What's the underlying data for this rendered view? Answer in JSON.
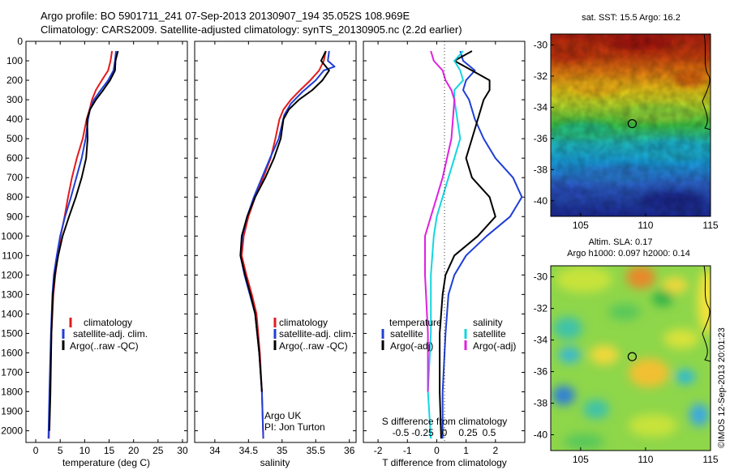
{
  "header": {
    "line1": "Argo profile: BO 5901711_241 07-Sep-2013 20130907_194 35.052S 108.969E",
    "line2": "Climatology: CARS2009. Satellite-adjusted climatology: synTS_20130905.nc (2.2d earlier)"
  },
  "footer": {
    "stamp": "©IMOS 12-Sep-2013 20:01:23"
  },
  "chart_data": [
    {
      "type": "line",
      "id": "temperature",
      "xlabel": "temperature (deg C)",
      "xlim": [
        -2,
        31
      ],
      "ylim": [
        2060,
        0
      ],
      "xticks": [
        "0",
        "5",
        "10",
        "15",
        "20",
        "25",
        "30"
      ],
      "xtick_values": [
        0,
        5,
        10,
        15,
        20,
        25,
        30
      ],
      "yticks": [
        "0",
        "100",
        "200",
        "300",
        "400",
        "500",
        "600",
        "700",
        "800",
        "900",
        "1000",
        "1100",
        "1200",
        "1300",
        "1400",
        "1500",
        "1600",
        "1700",
        "1800",
        "1900",
        "2000"
      ],
      "ytick_values": [
        0,
        100,
        200,
        300,
        400,
        500,
        600,
        700,
        800,
        900,
        1000,
        1100,
        1200,
        1300,
        1400,
        1500,
        1600,
        1700,
        1800,
        1900,
        2000
      ],
      "legend": [
        "climatology",
        "satellite-adj. clim.",
        "Argo(..raw -QC)"
      ],
      "series": [
        {
          "name": "climatology",
          "color": "#e41a1c",
          "x": [
            15.6,
            15.3,
            14.8,
            13.5,
            12.3,
            11.5,
            11.0,
            10.4,
            9.6,
            8.4,
            7.4,
            6.6,
            5.9,
            5.1,
            4.5,
            4.0,
            3.6,
            3.4,
            3.2,
            3.0,
            2.8,
            2.7
          ],
          "y": [
            50,
            100,
            150,
            200,
            250,
            300,
            350,
            400,
            500,
            600,
            700,
            800,
            900,
            1000,
            1100,
            1200,
            1300,
            1400,
            1500,
            1700,
            1900,
            2040
          ]
        },
        {
          "name": "satellite-adj. clim.",
          "color": "#1f3fd6",
          "x": [
            16.4,
            16.2,
            15.9,
            14.8,
            13.3,
            11.9,
            11.1,
            10.7,
            10.2,
            9.4,
            8.3,
            7.2,
            6.0,
            5.0,
            4.3,
            3.7,
            3.4,
            3.1,
            2.8,
            2.6
          ],
          "y": [
            50,
            100,
            150,
            200,
            250,
            300,
            350,
            400,
            500,
            600,
            700,
            800,
            900,
            1000,
            1100,
            1200,
            1300,
            1500,
            1800,
            2040
          ]
        },
        {
          "name": "Argo(..raw -QC)",
          "color": "#000000",
          "x": [
            16.8,
            16.3,
            16.2,
            15.2,
            13.8,
            12.3,
            11.1,
            10.5,
            10.6,
            10.3,
            9.4,
            8.2,
            6.8,
            5.5,
            4.6,
            3.9,
            3.5,
            3.2,
            3.0,
            2.8
          ],
          "y": [
            50,
            100,
            150,
            200,
            250,
            300,
            350,
            400,
            500,
            600,
            700,
            800,
            900,
            1000,
            1100,
            1200,
            1300,
            1500,
            1800,
            2000
          ]
        }
      ]
    },
    {
      "type": "line",
      "id": "salinity",
      "xlabel": "salinity",
      "xlim": [
        33.7,
        36.1
      ],
      "ylim": [
        2060,
        0
      ],
      "xticks": [
        "34",
        "34.5",
        "35",
        "35.5",
        "36"
      ],
      "xtick_values": [
        34,
        34.5,
        35,
        35.5,
        36
      ],
      "legend": [
        "climatology",
        "satellite-adj. clim.",
        "Argo(..raw -QC)"
      ],
      "annotation": [
        "Argo UK",
        "PI: Jon Turton"
      ],
      "series": [
        {
          "name": "climatology",
          "color": "#e41a1c",
          "x": [
            35.65,
            35.62,
            35.55,
            35.42,
            35.27,
            35.13,
            35.02,
            34.96,
            34.9,
            34.83,
            34.72,
            34.6,
            34.5,
            34.43,
            34.4,
            34.47,
            34.55,
            34.62,
            34.67,
            34.7,
            34.72
          ],
          "y": [
            50,
            100,
            150,
            200,
            250,
            300,
            350,
            400,
            500,
            600,
            700,
            800,
            900,
            1000,
            1100,
            1200,
            1300,
            1400,
            1600,
            1800,
            2040
          ]
        },
        {
          "name": "satellite-adj. clim.",
          "color": "#1f3fd6",
          "x": [
            35.7,
            35.68,
            35.78,
            35.62,
            35.5,
            35.3,
            35.13,
            35.03,
            34.95,
            34.82,
            34.7,
            34.58,
            34.48,
            34.41,
            34.38,
            34.44,
            34.52,
            34.6,
            34.66,
            34.7,
            34.72
          ],
          "y": [
            50,
            100,
            130,
            150,
            200,
            260,
            320,
            380,
            500,
            600,
            700,
            800,
            900,
            1000,
            1100,
            1200,
            1300,
            1400,
            1600,
            1800,
            2040
          ]
        },
        {
          "name": "Argo(..raw -QC)",
          "color": "#000000",
          "x": [
            35.65,
            35.58,
            35.7,
            35.6,
            35.45,
            35.25,
            35.1,
            35.02,
            34.98,
            34.88,
            34.75,
            34.6,
            34.48,
            34.4,
            34.38,
            34.45,
            34.53,
            34.6,
            34.66,
            34.7
          ],
          "y": [
            50,
            100,
            150,
            200,
            250,
            300,
            350,
            400,
            500,
            600,
            700,
            800,
            900,
            1000,
            1100,
            1200,
            1300,
            1400,
            1600,
            1800
          ]
        }
      ]
    },
    {
      "type": "line",
      "id": "differences",
      "xlabel": "T difference from climatology",
      "xlabel_top": "S difference from climatology",
      "xlim": [
        -2.5,
        3.0
      ],
      "ylim": [
        2060,
        0
      ],
      "xticks": [
        "-2",
        "-1",
        "0",
        "1",
        "2"
      ],
      "xtick_values": [
        -2,
        -1,
        0,
        1,
        2
      ],
      "xticks_top": [
        "-0.5",
        "-0.25",
        "0",
        "0.25",
        "0.5"
      ],
      "legend_headers": [
        "temperature",
        "salinity"
      ],
      "legend": [
        "satellite",
        "Argo(-adj)",
        "satellite",
        "Argo(-adj)"
      ],
      "series": [
        {
          "name": "satellite",
          "group": "temperature",
          "color": "#1f3fd6",
          "x": [
            0.8,
            0.9,
            1.3,
            1.0,
            0.9,
            1.1,
            1.3,
            1.6,
            2.0,
            2.6,
            2.9,
            2.5,
            1.7,
            1.0,
            0.6,
            0.4,
            0.3,
            0.2,
            0.2
          ],
          "y": [
            50,
            100,
            150,
            200,
            250,
            300,
            400,
            500,
            600,
            700,
            800,
            900,
            1000,
            1100,
            1200,
            1300,
            1500,
            1800,
            2040
          ]
        },
        {
          "name": "Argo(-adj)",
          "group": "temperature",
          "color": "#000000",
          "x": [
            1.2,
            0.6,
            1.2,
            1.8,
            1.8,
            1.6,
            1.4,
            1.2,
            1.0,
            1.2,
            1.8,
            2.0,
            1.4,
            0.6,
            0.3,
            0.2,
            0.1,
            0.1,
            0.15
          ],
          "y": [
            50,
            100,
            150,
            200,
            250,
            300,
            400,
            500,
            600,
            700,
            800,
            900,
            1000,
            1100,
            1200,
            1300,
            1500,
            1800,
            2040
          ]
        },
        {
          "name": "satellite",
          "group": "salinity",
          "color": "#13d6de",
          "x": [
            0.9,
            0.6,
            0.8,
            0.9,
            0.6,
            0.6,
            0.7,
            0.8,
            0.6,
            0.4,
            0.2,
            0.0,
            -0.1,
            -0.2,
            -0.2,
            -0.3,
            -0.2
          ],
          "y": [
            50,
            100,
            150,
            200,
            250,
            300,
            400,
            500,
            600,
            700,
            800,
            900,
            1000,
            1200,
            1500,
            1800,
            2040
          ]
        },
        {
          "name": "Argo(-adj)",
          "group": "salinity",
          "color": "#e020e0",
          "x": [
            -0.2,
            -0.1,
            0.2,
            0.3,
            0.5,
            0.6,
            0.55,
            0.5,
            0.35,
            0.2,
            0.0,
            -0.2,
            -0.4,
            -0.4,
            -0.3,
            -0.3
          ],
          "y": [
            50,
            100,
            150,
            200,
            250,
            300,
            400,
            500,
            600,
            700,
            800,
            900,
            1000,
            1200,
            1500,
            1800
          ]
        }
      ]
    },
    {
      "type": "heatmap",
      "id": "sst_map",
      "title": "sat. SST: 15.5 Argo: 16.2",
      "xticks": [
        "105",
        "110",
        "115"
      ],
      "xtick_values": [
        105,
        110,
        115
      ],
      "yticks": [
        "-30",
        "-32",
        "-34",
        "-36",
        "-38",
        "-40"
      ],
      "ytick_values": [
        -30,
        -32,
        -34,
        -36,
        -38,
        -40
      ],
      "xlim": [
        102.7,
        115
      ],
      "ylim": [
        -41,
        -29.3
      ],
      "marker": {
        "lon": 108.969,
        "lat": -35.052
      }
    },
    {
      "type": "heatmap",
      "id": "sla_map",
      "title": "Altim. SLA: 0.17",
      "subtitle": "Argo h1000: 0.097 h2000: 0.14",
      "xticks": [
        "105",
        "110",
        "115"
      ],
      "xtick_values": [
        105,
        110,
        115
      ],
      "yticks": [
        "-30",
        "-32",
        "-34",
        "-36",
        "-38",
        "-40"
      ],
      "ytick_values": [
        -30,
        -32,
        -34,
        -36,
        -38,
        -40
      ],
      "xlim": [
        102.7,
        115
      ],
      "ylim": [
        -41,
        -29.3
      ],
      "marker": {
        "lon": 108.969,
        "lat": -35.052
      }
    }
  ]
}
